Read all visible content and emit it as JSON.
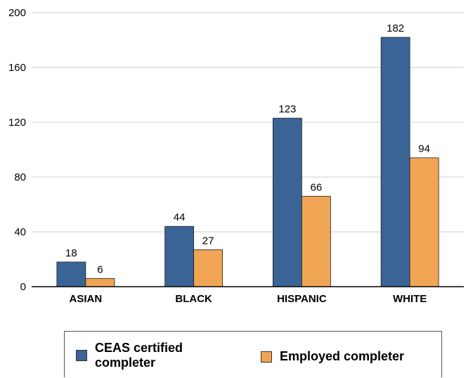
{
  "chart_data": {
    "type": "bar",
    "categories": [
      "ASIAN",
      "BLACK",
      "HISPANIC",
      "WHITE"
    ],
    "series": [
      {
        "name": "CEAS certified completer",
        "color": "#3a6496",
        "values": [
          18,
          44,
          123,
          182
        ]
      },
      {
        "name": "Employed completer",
        "color": "#f0a555",
        "values": [
          6,
          27,
          66,
          94
        ]
      }
    ],
    "ylim": [
      0,
      200
    ],
    "yticks": [
      0,
      40,
      80,
      120,
      160,
      200
    ],
    "grid": true,
    "legend_position": "bottom"
  }
}
